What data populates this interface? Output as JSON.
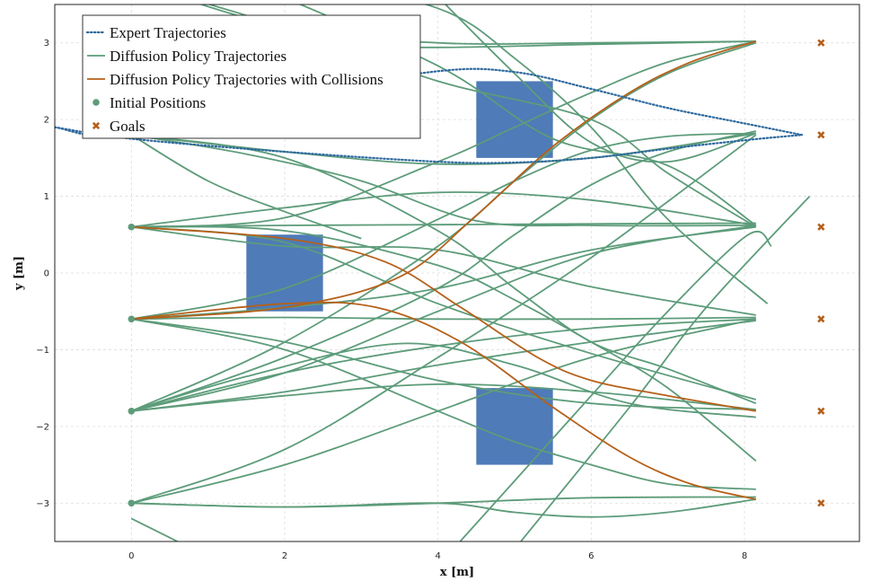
{
  "chart_data": {
    "type": "line",
    "xlabel": "x [m]",
    "ylabel": "y [m]",
    "xlim": [
      -1,
      9.5
    ],
    "ylim": [
      -3.5,
      3.5
    ],
    "x_ticks": [
      0,
      2,
      4,
      6,
      8
    ],
    "y_ticks": [
      -3,
      -2,
      -1,
      0,
      1,
      2,
      3
    ],
    "grid": true,
    "legend_position": "top-left",
    "colors": {
      "expert": "#2e6a9e",
      "diffusion": "#5d9c7a",
      "collision": "#b5601a",
      "initial": "#5d9c7a",
      "goal": "#b5601a",
      "obstacle": "#4f7bb8"
    },
    "legend": [
      {
        "label": "Expert Trajectories",
        "kind": "dotted-line",
        "color": "#2e6a9e"
      },
      {
        "label": "Diffusion Policy Trajectories",
        "kind": "line",
        "color": "#5d9c7a"
      },
      {
        "label": "Diffusion Policy Trajectories with Collisions",
        "kind": "line",
        "color": "#b5601a"
      },
      {
        "label": "Initial Positions",
        "kind": "circle",
        "color": "#5d9c7a"
      },
      {
        "label": "Goals",
        "kind": "cross",
        "color": "#b5601a"
      }
    ],
    "obstacles": [
      {
        "x_min": 1.5,
        "x_max": 2.5,
        "y_min": -0.5,
        "y_max": 0.5
      },
      {
        "x_min": 4.5,
        "x_max": 5.5,
        "y_min": 1.5,
        "y_max": 2.5
      },
      {
        "x_min": 4.5,
        "x_max": 5.5,
        "y_min": -2.5,
        "y_max": -1.5
      }
    ],
    "initial_positions": [
      [
        0,
        0.6
      ],
      [
        0,
        -0.6
      ],
      [
        0,
        -1.8
      ],
      [
        0,
        -3.0
      ]
    ],
    "goals": [
      [
        9,
        3.0
      ],
      [
        9,
        1.8
      ],
      [
        9,
        0.6
      ],
      [
        9,
        -0.6
      ],
      [
        9,
        -1.8
      ],
      [
        9,
        -3.0
      ]
    ],
    "expert_trajectories": [
      [
        [
          -1.0,
          1.9
        ],
        [
          0,
          1.78
        ],
        [
          2,
          2.3
        ],
        [
          4,
          2.63
        ],
        [
          5,
          2.62
        ],
        [
          6,
          2.4
        ],
        [
          7,
          2.15
        ],
        [
          8,
          1.95
        ],
        [
          8.75,
          1.8
        ]
      ],
      [
        [
          -1.0,
          1.9
        ],
        [
          0,
          1.75
        ],
        [
          2,
          1.58
        ],
        [
          4,
          1.45
        ],
        [
          5,
          1.44
        ],
        [
          6,
          1.5
        ],
        [
          7,
          1.62
        ],
        [
          8,
          1.73
        ],
        [
          8.75,
          1.8
        ]
      ]
    ],
    "diffusion_trajectories": [
      [
        [
          0,
          0.6
        ],
        [
          2,
          0.62
        ],
        [
          4,
          0.63
        ],
        [
          6,
          0.64
        ],
        [
          8.15,
          0.65
        ]
      ],
      [
        [
          0,
          0.6
        ],
        [
          2,
          0.72
        ],
        [
          4,
          1.45
        ],
        [
          5,
          1.9
        ],
        [
          6,
          2.35
        ],
        [
          7,
          2.75
        ],
        [
          8.15,
          3.02
        ]
      ],
      [
        [
          0,
          0.6
        ],
        [
          2,
          0.55
        ],
        [
          4,
          0.1
        ],
        [
          5,
          -0.35
        ],
        [
          6,
          -0.9
        ],
        [
          7,
          -1.5
        ],
        [
          8.15,
          -2.45
        ]
      ],
      [
        [
          0,
          0.6
        ],
        [
          2,
          0.35
        ],
        [
          4,
          0.3
        ],
        [
          6,
          -0.18
        ],
        [
          8.15,
          -0.55
        ]
      ],
      [
        [
          0,
          0.6
        ],
        [
          2,
          0.85
        ],
        [
          4,
          1.05
        ],
        [
          6,
          0.95
        ],
        [
          8.15,
          0.62
        ]
      ],
      [
        [
          0,
          0.6
        ],
        [
          2,
          0.4
        ],
        [
          4,
          -0.4
        ],
        [
          6,
          -1.05
        ],
        [
          8.15,
          -1.65
        ]
      ],
      [
        [
          0,
          -0.6
        ],
        [
          2,
          -0.58
        ],
        [
          4,
          -0.6
        ],
        [
          6,
          -0.6
        ],
        [
          8.15,
          -0.58
        ]
      ],
      [
        [
          0,
          -0.6
        ],
        [
          2,
          -0.2
        ],
        [
          4,
          0.7
        ],
        [
          5,
          1.2
        ],
        [
          6,
          1.6
        ],
        [
          7,
          1.78
        ],
        [
          8.15,
          1.82
        ]
      ],
      [
        [
          0,
          -0.6
        ],
        [
          2,
          -0.9
        ],
        [
          4,
          -1.4
        ],
        [
          6,
          -1.7
        ],
        [
          8.15,
          -1.78
        ]
      ],
      [
        [
          0,
          -0.6
        ],
        [
          2,
          -0.45
        ],
        [
          4,
          -0.2
        ],
        [
          6,
          0.3
        ],
        [
          8.15,
          0.6
        ]
      ],
      [
        [
          0,
          -0.6
        ],
        [
          2,
          -1.0
        ],
        [
          4,
          -1.8
        ],
        [
          5,
          -2.2
        ],
        [
          6,
          -2.5
        ],
        [
          7,
          -2.75
        ],
        [
          8.15,
          -2.82
        ]
      ],
      [
        [
          0,
          -1.8
        ],
        [
          2,
          -1.6
        ],
        [
          4,
          -1.45
        ],
        [
          6,
          -1.55
        ],
        [
          8.15,
          -1.78
        ]
      ],
      [
        [
          0,
          -1.8
        ],
        [
          2,
          -1.1
        ],
        [
          4,
          -0.2
        ],
        [
          5,
          0.5
        ],
        [
          6,
          1.15
        ],
        [
          7,
          1.58
        ],
        [
          8.15,
          1.85
        ]
      ],
      [
        [
          0,
          -1.8
        ],
        [
          2,
          -1.3
        ],
        [
          4,
          -0.95
        ],
        [
          6,
          -0.72
        ],
        [
          8.15,
          -0.6
        ]
      ],
      [
        [
          0,
          -1.8
        ],
        [
          2,
          -0.9
        ],
        [
          4,
          0.35
        ],
        [
          5,
          1.2
        ],
        [
          6,
          2.0
        ],
        [
          7,
          2.6
        ],
        [
          8.15,
          3.0
        ]
      ],
      [
        [
          0,
          -1.8
        ],
        [
          2,
          -1.55
        ],
        [
          4,
          -1.2
        ],
        [
          6,
          -0.9
        ],
        [
          8.15,
          -0.62
        ]
      ],
      [
        [
          0,
          -1.8
        ],
        [
          1.5,
          -1.35
        ],
        [
          3.5,
          -0.92
        ],
        [
          5,
          -1.2
        ],
        [
          6.5,
          -1.7
        ],
        [
          8.15,
          -1.88
        ]
      ],
      [
        [
          0,
          -1.8
        ],
        [
          2,
          -1.3
        ],
        [
          4,
          -0.5
        ],
        [
          6,
          0.25
        ],
        [
          8.15,
          0.62
        ]
      ],
      [
        [
          0,
          -3.0
        ],
        [
          2,
          -3.05
        ],
        [
          4,
          -3.0
        ],
        [
          6,
          -2.93
        ],
        [
          8.15,
          -2.92
        ]
      ],
      [
        [
          0,
          -3.0
        ],
        [
          2,
          -2.5
        ],
        [
          4,
          -1.8
        ],
        [
          6,
          -1.1
        ],
        [
          8.15,
          -0.6
        ]
      ],
      [
        [
          0,
          -3.0
        ],
        [
          2,
          -2.3
        ],
        [
          4,
          -1.1
        ],
        [
          6,
          0.2
        ],
        [
          8.15,
          1.8
        ]
      ],
      [
        [
          0,
          -3.0
        ],
        [
          2,
          -3.05
        ],
        [
          4,
          -3.0
        ],
        [
          5,
          -3.12
        ],
        [
          6,
          -3.18
        ],
        [
          7,
          -3.12
        ],
        [
          8.15,
          -2.95
        ]
      ],
      [
        [
          0,
          1.8
        ],
        [
          2,
          1.58
        ],
        [
          4,
          1.42
        ],
        [
          6,
          1.5
        ],
        [
          8.15,
          1.82
        ]
      ],
      [
        [
          0,
          1.8
        ],
        [
          1.5,
          1.55
        ],
        [
          3,
          1.2
        ],
        [
          4.5,
          0.68
        ],
        [
          6,
          0.62
        ],
        [
          8.15,
          0.62
        ]
      ],
      [
        [
          0,
          1.8
        ],
        [
          2,
          1.5
        ],
        [
          4,
          0.55
        ],
        [
          5,
          -0.2
        ],
        [
          6,
          -0.9
        ],
        [
          7,
          -1.25
        ],
        [
          8.15,
          -1.7
        ]
      ],
      [
        [
          0,
          3.0
        ],
        [
          2,
          2.96
        ],
        [
          4,
          2.94
        ],
        [
          6,
          2.98
        ],
        [
          8.15,
          3.02
        ]
      ],
      [
        [
          0,
          3.8
        ],
        [
          2,
          3.2
        ],
        [
          4,
          2.5
        ],
        [
          6,
          2.0
        ],
        [
          7,
          1.3
        ],
        [
          8.15,
          0.6
        ]
      ],
      [
        [
          2,
          3.9
        ],
        [
          4,
          3.45
        ],
        [
          5,
          2.8
        ],
        [
          6,
          1.9
        ],
        [
          7,
          0.7
        ],
        [
          8.3,
          -0.4
        ]
      ],
      [
        [
          1.5,
          3.8
        ],
        [
          4,
          2.7
        ],
        [
          5.5,
          1.75
        ],
        [
          7,
          1.4
        ],
        [
          8.15,
          0.62
        ]
      ],
      [
        [
          4,
          3.6
        ],
        [
          5,
          2.6
        ],
        [
          6,
          1.7
        ],
        [
          7,
          1.45
        ],
        [
          8.15,
          1.82
        ]
      ],
      [
        [
          0,
          3.8
        ],
        [
          2,
          3.2
        ],
        [
          4,
          3.0
        ],
        [
          6,
          3.0
        ],
        [
          8.15,
          3.02
        ]
      ],
      [
        [
          0.8,
          -3.6
        ],
        [
          0,
          -3.2
        ]
      ],
      [
        [
          4.2,
          -3.6
        ],
        [
          6,
          -1.6
        ],
        [
          7,
          -0.5
        ],
        [
          8.05,
          0.5
        ],
        [
          8.35,
          0.35
        ]
      ],
      [
        [
          5,
          -3.6
        ],
        [
          6.5,
          -1.75
        ],
        [
          7.5,
          -0.45
        ],
        [
          8.85,
          1.0
        ]
      ],
      [
        [
          0,
          1.8
        ],
        [
          1,
          1.2
        ],
        [
          2,
          0.8
        ],
        [
          3,
          0.45
        ]
      ]
    ],
    "collision_trajectories": [
      [
        [
          0,
          0.6
        ],
        [
          2,
          0.45
        ],
        [
          3.3,
          0.15
        ],
        [
          4.3,
          -0.45
        ],
        [
          5.3,
          -1.1
        ],
        [
          6,
          -1.4
        ],
        [
          7,
          -1.6
        ],
        [
          8.15,
          -1.8
        ]
      ],
      [
        [
          0,
          -0.6
        ],
        [
          2,
          -0.4
        ],
        [
          3.2,
          -0.45
        ],
        [
          4.3,
          -0.9
        ],
        [
          5.5,
          -1.75
        ],
        [
          6.5,
          -2.4
        ],
        [
          7.3,
          -2.75
        ],
        [
          8.15,
          -2.95
        ]
      ],
      [
        [
          0,
          -0.6
        ],
        [
          2,
          -0.45
        ],
        [
          3.5,
          -0.05
        ],
        [
          4.5,
          0.75
        ],
        [
          5.5,
          1.65
        ],
        [
          6.5,
          2.35
        ],
        [
          7.3,
          2.75
        ],
        [
          8.15,
          3.02
        ]
      ]
    ]
  }
}
